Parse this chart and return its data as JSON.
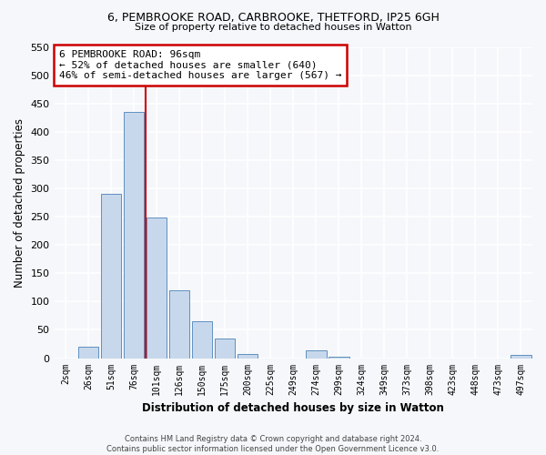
{
  "title1": "6, PEMBROOKE ROAD, CARBROOKE, THETFORD, IP25 6GH",
  "title2": "Size of property relative to detached houses in Watton",
  "xlabel": "Distribution of detached houses by size in Watton",
  "ylabel": "Number of detached properties",
  "categories": [
    "2sqm",
    "26sqm",
    "51sqm",
    "76sqm",
    "101sqm",
    "126sqm",
    "150sqm",
    "175sqm",
    "200sqm",
    "225sqm",
    "249sqm",
    "274sqm",
    "299sqm",
    "324sqm",
    "349sqm",
    "373sqm",
    "398sqm",
    "423sqm",
    "448sqm",
    "473sqm",
    "497sqm"
  ],
  "values": [
    0,
    20,
    290,
    435,
    248,
    120,
    65,
    35,
    8,
    0,
    0,
    13,
    3,
    0,
    0,
    0,
    0,
    0,
    0,
    0,
    5
  ],
  "bar_color": "#c8d8ec",
  "bar_edge_color": "#6090c0",
  "vline_position": 4,
  "annotation_text": "6 PEMBROOKE ROAD: 96sqm\n← 52% of detached houses are smaller (640)\n46% of semi-detached houses are larger (567) →",
  "annotation_box_color": "#ffffff",
  "annotation_box_edge": "#cc0000",
  "vline_color": "#cc0000",
  "ylim": [
    0,
    550
  ],
  "yticks": [
    0,
    50,
    100,
    150,
    200,
    250,
    300,
    350,
    400,
    450,
    500,
    550
  ],
  "bg_color": "#f5f7fa",
  "grid_color": "#ffffff",
  "footer": "Contains HM Land Registry data © Crown copyright and database right 2024.\nContains public sector information licensed under the Open Government Licence v3.0."
}
